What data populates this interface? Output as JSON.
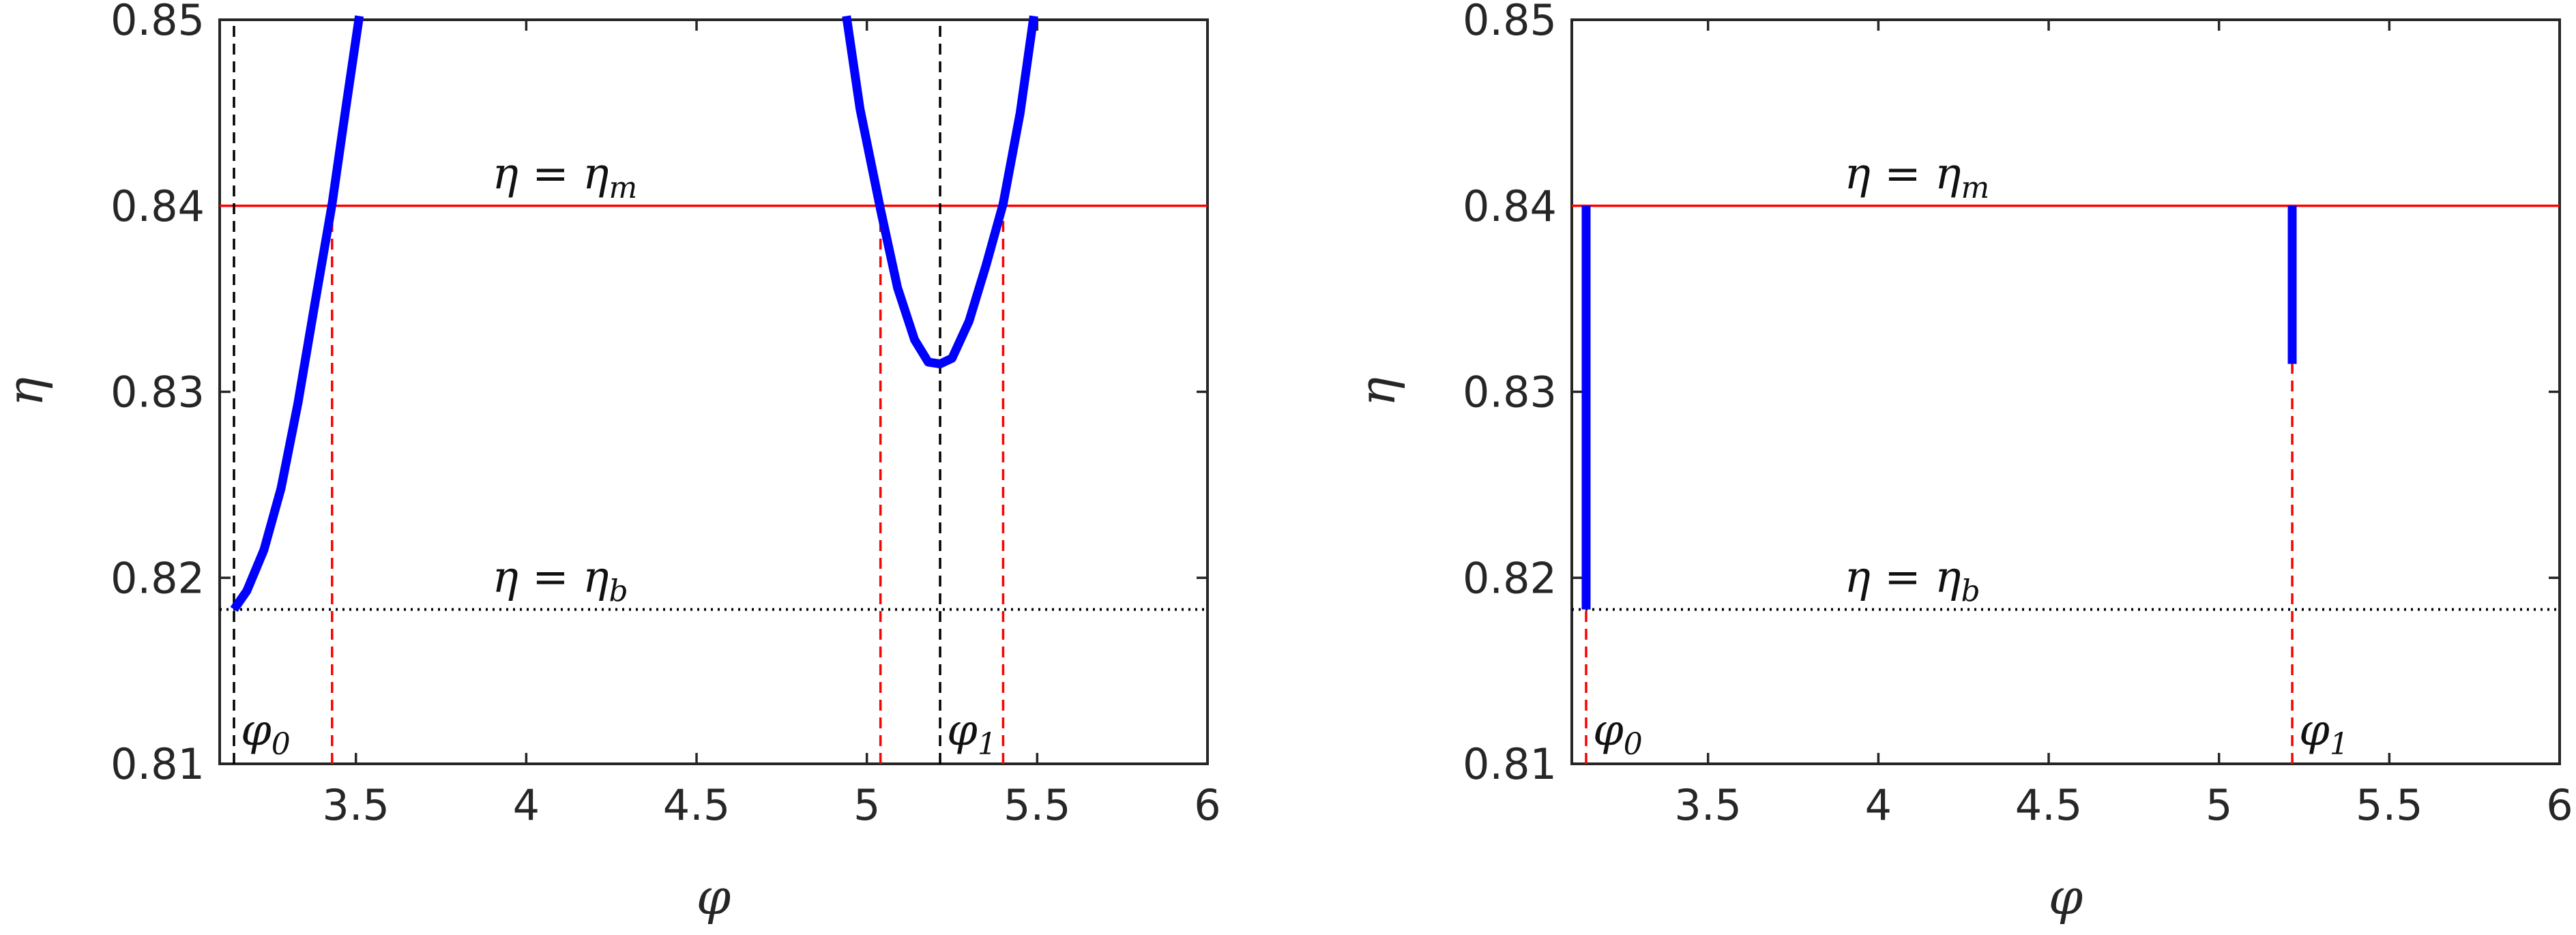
{
  "colors": {
    "curve": "#0000ff",
    "eta_m_line": "#ff0000",
    "eta_b_line": "#000000",
    "black_dashed": "#000000",
    "red_dashed": "#ff0000"
  },
  "chart_data": [
    {
      "type": "line",
      "xlabel": "φ",
      "ylabel": "η",
      "xlim": [
        3.1,
        6
      ],
      "ylim": [
        0.81,
        0.85
      ],
      "xticks": [
        "3.5",
        "4",
        "4.5",
        "5",
        "5.5",
        "6"
      ],
      "yticks": [
        "0.81",
        "0.82",
        "0.83",
        "0.84",
        "0.85"
      ],
      "grid": false,
      "series": [
        {
          "points": [
            [
              3.142,
              0.8183
            ],
            [
              3.18,
              0.8193
            ],
            [
              3.23,
              0.8215
            ],
            [
              3.28,
              0.8248
            ],
            [
              3.33,
              0.8294
            ],
            [
              3.38,
              0.8348
            ],
            [
              3.43,
              0.8401
            ],
            [
              3.47,
              0.8452
            ],
            [
              3.51,
              0.8502
            ]
          ]
        },
        {
          "points": [
            [
              4.94,
              0.8502
            ],
            [
              4.98,
              0.8452
            ],
            [
              5.04,
              0.8398
            ],
            [
              5.09,
              0.8356
            ],
            [
              5.14,
              0.8328
            ],
            [
              5.18,
              0.8316
            ],
            [
              5.215,
              0.8315
            ],
            [
              5.25,
              0.8318
            ],
            [
              5.3,
              0.8338
            ],
            [
              5.35,
              0.8368
            ],
            [
              5.4,
              0.8401
            ],
            [
              5.45,
              0.845
            ],
            [
              5.49,
              0.8502
            ]
          ]
        }
      ],
      "hlines": [
        {
          "y": 0.84,
          "style": "solid",
          "color": "red",
          "annotation": "η = ηm"
        },
        {
          "y": 0.8183,
          "style": "dotted",
          "color": "black",
          "annotation": "η = ηb"
        }
      ],
      "vlines": [
        {
          "x": 3.142,
          "color": "black",
          "style": "dashed",
          "from": 0.81,
          "to": 0.85,
          "label": "φ0"
        },
        {
          "x": 3.43,
          "color": "red",
          "style": "dashed",
          "from": 0.81,
          "to": 0.84
        },
        {
          "x": 5.04,
          "color": "red",
          "style": "dashed",
          "from": 0.81,
          "to": 0.84
        },
        {
          "x": 5.215,
          "color": "black",
          "style": "dashed",
          "from": 0.81,
          "to": 0.85,
          "label": "φ1"
        },
        {
          "x": 5.4,
          "color": "red",
          "style": "dashed",
          "from": 0.81,
          "to": 0.84
        }
      ]
    },
    {
      "type": "line",
      "xlabel": "φ",
      "ylabel": "η",
      "xlim": [
        3.1,
        6
      ],
      "ylim": [
        0.81,
        0.85
      ],
      "xticks": [
        "3.5",
        "4",
        "4.5",
        "5",
        "5.5",
        "6"
      ],
      "yticks": [
        "0.81",
        "0.82",
        "0.83",
        "0.84",
        "0.85"
      ],
      "grid": false,
      "series": [
        {
          "points": [
            [
              3.142,
              0.8183
            ],
            [
              3.142,
              0.84
            ]
          ]
        },
        {
          "points": [
            [
              5.215,
              0.8315
            ],
            [
              5.215,
              0.84
            ]
          ]
        }
      ],
      "hlines": [
        {
          "y": 0.84,
          "style": "solid",
          "color": "red",
          "annotation": "η = ηm"
        },
        {
          "y": 0.8183,
          "style": "dotted",
          "color": "black",
          "annotation": "η = ηb"
        }
      ],
      "vlines": [
        {
          "x": 3.142,
          "color": "red",
          "style": "dashed",
          "from": 0.81,
          "to": 0.8183,
          "label": "φ0"
        },
        {
          "x": 5.215,
          "color": "red",
          "style": "dashed",
          "from": 0.81,
          "to": 0.8315,
          "label": "φ1"
        }
      ]
    }
  ]
}
